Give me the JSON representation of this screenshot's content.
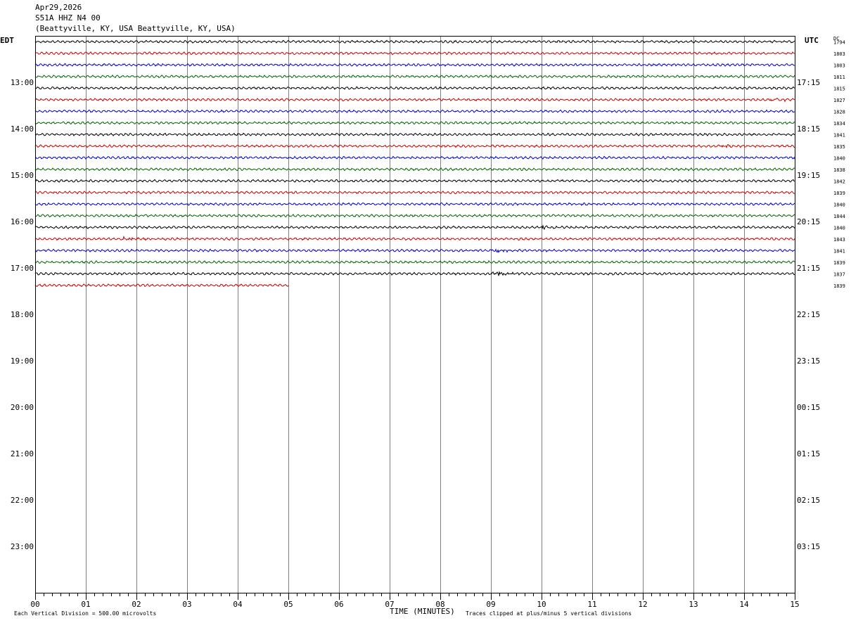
{
  "header": {
    "date": "Apr29,2026",
    "station": "S51A HHZ N4 00",
    "location": "(Beattyville, KY, USA Beattyville, KY, USA)"
  },
  "left_axis_title": "EDT",
  "right_axis_title": "UTC",
  "dc_title": "DC",
  "footer": {
    "vertical_division": "Each Vertical Division =  500.00 microvolts",
    "xlabel": "TIME (MINUTES)",
    "clip_note": "Traces clipped at plus/minus 5 vertical divisions"
  },
  "colors": {
    "trace_cycle": [
      "#000000",
      "#cc0000",
      "#0000cc",
      "#006600"
    ],
    "grid": "#808080",
    "frame": "#000000"
  },
  "chart_data": {
    "type": "line",
    "x_unit": "minutes",
    "xlim": [
      0,
      15
    ],
    "x_ticks": [
      "00",
      "01",
      "02",
      "03",
      "04",
      "05",
      "06",
      "07",
      "08",
      "09",
      "10",
      "11",
      "12",
      "13",
      "14",
      "15"
    ],
    "rows_total": 48,
    "edt_labels": [
      "13:00",
      "14:00",
      "15:00",
      "16:00",
      "17:00",
      "18:00",
      "19:00",
      "20:00",
      "21:00",
      "22:00",
      "23:00"
    ],
    "utc_labels": [
      "17:15",
      "18:15",
      "19:15",
      "20:15",
      "21:15",
      "22:15",
      "23:15",
      "00:15",
      "01:15",
      "02:15",
      "03:15"
    ],
    "traces": [
      {
        "dc": "1794",
        "end_min": 15
      },
      {
        "dc": "1803",
        "end_min": 15
      },
      {
        "dc": "1803",
        "end_min": 15
      },
      {
        "dc": "1811",
        "end_min": 15
      },
      {
        "dc": "1815",
        "end_min": 15
      },
      {
        "dc": "1827",
        "end_min": 15,
        "events": [
          {
            "t": 14.6,
            "amp": 2
          }
        ]
      },
      {
        "dc": "1828",
        "end_min": 15
      },
      {
        "dc": "1834",
        "end_min": 15
      },
      {
        "dc": "1841",
        "end_min": 15
      },
      {
        "dc": "1835",
        "end_min": 15,
        "events": [
          {
            "t": 13.6,
            "amp": 2
          }
        ]
      },
      {
        "dc": "1840",
        "end_min": 15
      },
      {
        "dc": "1838",
        "end_min": 15
      },
      {
        "dc": "1842",
        "end_min": 15
      },
      {
        "dc": "1839",
        "end_min": 15
      },
      {
        "dc": "1840",
        "end_min": 15
      },
      {
        "dc": "1844",
        "end_min": 15
      },
      {
        "dc": "1840",
        "end_min": 15,
        "events": [
          {
            "t": 10.05,
            "amp": 2
          }
        ]
      },
      {
        "dc": "1843",
        "end_min": 15,
        "events": [
          {
            "t": 1.8,
            "amp": 2
          }
        ]
      },
      {
        "dc": "1841",
        "end_min": 15,
        "events": [
          {
            "t": 9.1,
            "amp": 3
          }
        ]
      },
      {
        "dc": "1839",
        "end_min": 15
      },
      {
        "dc": "1837",
        "end_min": 15,
        "events": [
          {
            "t": 9.1,
            "amp": 5
          }
        ]
      },
      {
        "dc": "1839",
        "end_min": 5
      }
    ]
  }
}
